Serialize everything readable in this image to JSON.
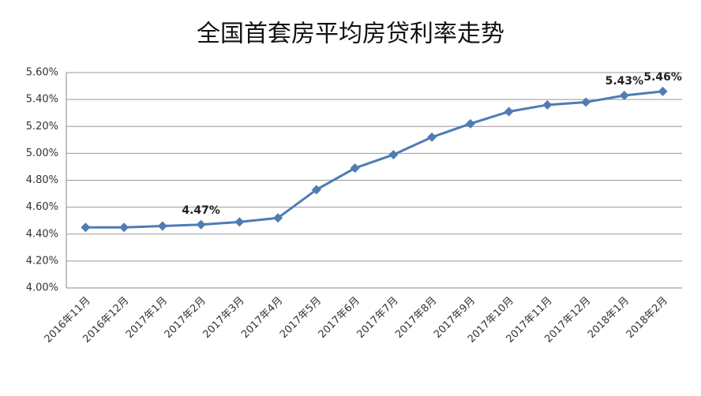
{
  "chart_data": {
    "type": "line",
    "title": "全国首套房平均房贷利率走势",
    "categories": [
      "2016年11月",
      "2016年12月",
      "2017年1月",
      "2017年2月",
      "2017年3月",
      "2017年4月",
      "2017年5月",
      "2017年6月",
      "2017年7月",
      "2017年8月",
      "2017年9月",
      "2017年10月",
      "2017年11月",
      "2017年12月",
      "2018年1月",
      "2018年2月"
    ],
    "series": [
      {
        "name": "首套房平均房贷利率",
        "color": "#4f7cb3",
        "values": [
          4.45,
          4.45,
          4.46,
          4.47,
          4.49,
          4.52,
          4.73,
          4.89,
          4.99,
          5.12,
          5.22,
          5.31,
          5.36,
          5.38,
          5.43,
          5.46
        ],
        "value_labels": [
          null,
          null,
          null,
          "4.47%",
          null,
          null,
          null,
          null,
          null,
          null,
          null,
          null,
          null,
          null,
          "5.43%",
          "5.46%"
        ]
      }
    ],
    "ylim": [
      4.0,
      5.6
    ],
    "yticks": [
      {
        "value": 4.0,
        "label": "4.00%"
      },
      {
        "value": 4.2,
        "label": "4.20%"
      },
      {
        "value": 4.4,
        "label": "4.40%"
      },
      {
        "value": 4.6,
        "label": "4.60%"
      },
      {
        "value": 4.8,
        "label": "4.80%"
      },
      {
        "value": 5.0,
        "label": "5.00%"
      },
      {
        "value": 5.2,
        "label": "5.20%"
      },
      {
        "value": 5.4,
        "label": "5.40%"
      },
      {
        "value": 5.6,
        "label": "5.60%"
      }
    ],
    "grid": true
  }
}
